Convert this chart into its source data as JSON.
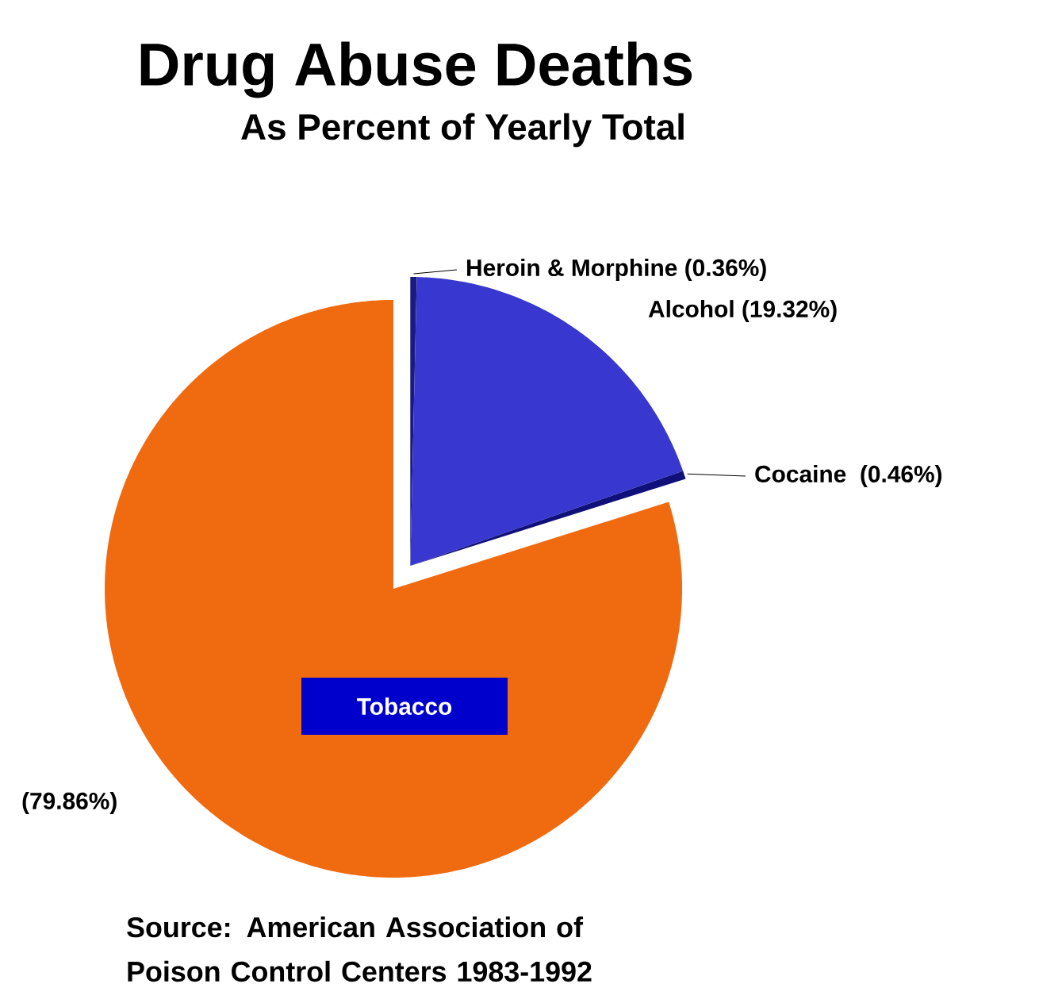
{
  "chart_data": {
    "type": "pie",
    "title": "Drug Abuse Deaths",
    "subtitle": "As Percent of Yearly Total",
    "categories": [
      "Heroin & Morphine",
      "Alcohol",
      "Cocaine",
      "Tobacco"
    ],
    "values": [
      0.36,
      19.32,
      0.46,
      79.86
    ],
    "value_labels": [
      "(0.36%)",
      "(19.32%)",
      "(0.46%)",
      "(79.86%)"
    ],
    "colors": [
      "#1a1a80",
      "#3838d0",
      "#10107a",
      "#f06a10"
    ],
    "annotations": [
      "Source: American Association of Poison Control Centers 1983-1992"
    ]
  }
}
